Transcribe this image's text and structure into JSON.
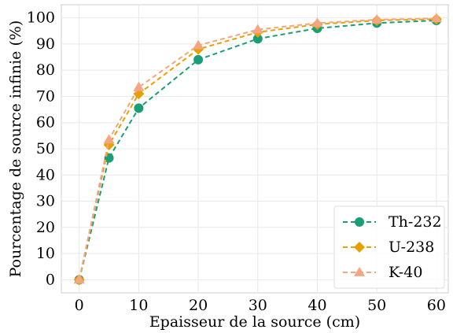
{
  "chart_data": {
    "type": "line",
    "x": [
      0,
      5,
      10,
      20,
      30,
      40,
      50,
      60
    ],
    "xticks": [
      0,
      10,
      20,
      30,
      40,
      50,
      60
    ],
    "yticks": [
      0,
      10,
      20,
      30,
      40,
      50,
      60,
      70,
      80,
      90,
      100
    ],
    "xlim": [
      -3,
      62
    ],
    "ylim": [
      -5,
      105
    ],
    "xlabel": "Epaisseur de la source (cm)",
    "ylabel": "Pourcentage de source infinie (%)",
    "title": "",
    "grid": true,
    "legend_position": "bottom-right",
    "series": [
      {
        "name": "Th-232",
        "color": "#1a9e77",
        "marker": "circle",
        "line_style": "dashed",
        "values": [
          0,
          46.5,
          65.5,
          84,
          92,
          96,
          98,
          99
        ]
      },
      {
        "name": "U-238",
        "color": "#e6a100",
        "marker": "diamond",
        "line_style": "dashed",
        "values": [
          0,
          51.5,
          71,
          88,
          94.5,
          97.5,
          99,
          99.5
        ]
      },
      {
        "name": "K-40",
        "color": "#f4a582",
        "marker": "triangle",
        "line_style": "dashed",
        "values": [
          0,
          53.5,
          73.5,
          89.5,
          95.5,
          98,
          99.3,
          99.8
        ]
      }
    ]
  }
}
